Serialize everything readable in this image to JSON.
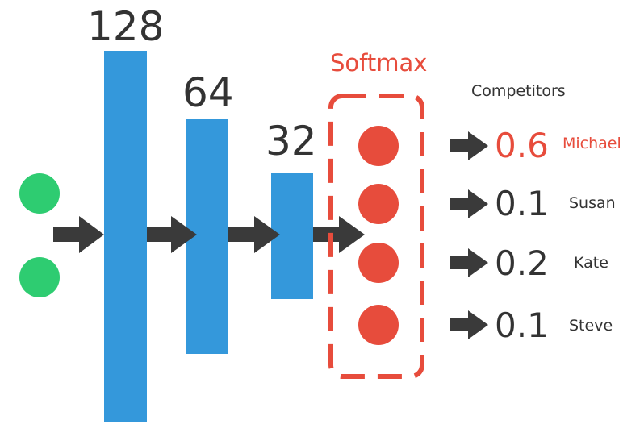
{
  "layers": [
    {
      "size_label": "128"
    },
    {
      "size_label": "64"
    },
    {
      "size_label": "32"
    }
  ],
  "softmax_label": "Softmax",
  "competitors_header": "Competitors",
  "outputs": [
    {
      "prob": "0.6",
      "name": "Michael",
      "highlight": true
    },
    {
      "prob": "0.1",
      "name": "Susan",
      "highlight": false
    },
    {
      "prob": "0.2",
      "name": "Kate",
      "highlight": false
    },
    {
      "prob": "0.1",
      "name": "Steve",
      "highlight": false
    }
  ],
  "colors": {
    "input_node": "#2ecc71",
    "layer_bar": "#3498db",
    "arrow": "#3a3a3a",
    "softmax": "#e74c3c",
    "text": "#333333"
  }
}
